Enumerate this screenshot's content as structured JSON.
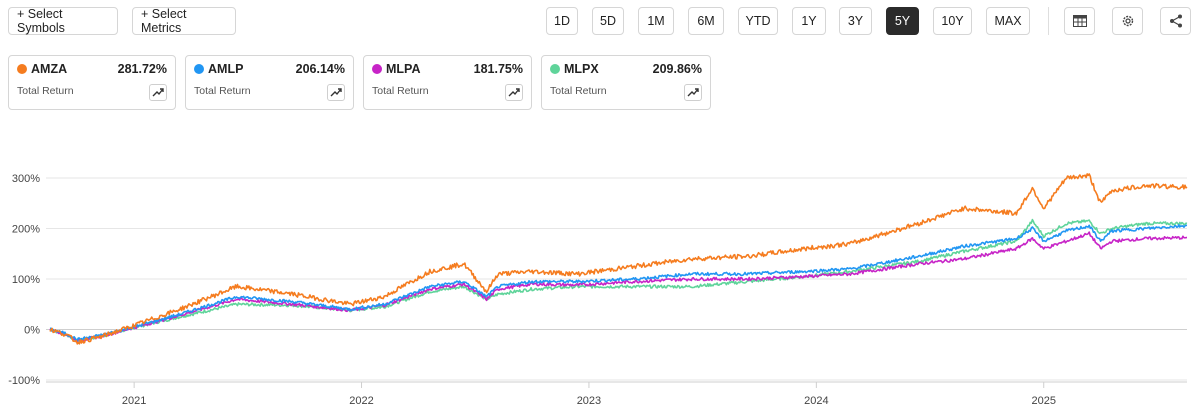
{
  "toolbar": {
    "select_symbols": "+ Select Symbols",
    "select_metrics": "+ Select Metrics",
    "ranges": [
      "1D",
      "5D",
      "1M",
      "6M",
      "YTD",
      "1Y",
      "3Y",
      "5Y",
      "10Y",
      "MAX"
    ],
    "active_range": "5Y",
    "icons": [
      "table-icon",
      "gear-icon",
      "share-icon"
    ]
  },
  "cards": [
    {
      "symbol": "AMZA",
      "value": "281.72%",
      "metric": "Total Return",
      "color": "#f57c1f"
    },
    {
      "symbol": "AMLP",
      "value": "206.14%",
      "metric": "Total Return",
      "color": "#2196f3"
    },
    {
      "symbol": "MLPA",
      "value": "181.75%",
      "metric": "Total Return",
      "color": "#c724c7"
    },
    {
      "symbol": "MLPX",
      "value": "209.86%",
      "metric": "Total Return",
      "color": "#5fd49a"
    }
  ],
  "chart_data": {
    "type": "line",
    "y_tick_labels": [
      "300%",
      "200%",
      "100%",
      "0%",
      "-100%"
    ],
    "y_ticks": [
      300,
      200,
      100,
      0,
      -100
    ],
    "ylim": [
      -110,
      330
    ],
    "x_tick_labels": [
      "2021",
      "2022",
      "2023",
      "2024",
      "2025"
    ],
    "x_ticks": [
      2021.0,
      2022.0,
      2023.0,
      2024.0,
      2025.0
    ],
    "xlim": [
      2020.63,
      2025.63
    ],
    "grid": true,
    "series": [
      {
        "name": "AMZA",
        "color": "#f57c1f",
        "x": [
          2020.63,
          2020.7,
          2020.75,
          2020.85,
          2021.0,
          2021.2,
          2021.45,
          2021.7,
          2021.95,
          2022.1,
          2022.3,
          2022.45,
          2022.55,
          2022.6,
          2022.75,
          2022.95,
          2023.2,
          2023.45,
          2023.7,
          2023.95,
          2024.15,
          2024.45,
          2024.65,
          2024.88,
          2024.95,
          2025.0,
          2025.1,
          2025.2,
          2025.25,
          2025.3,
          2025.45,
          2025.63
        ],
        "y": [
          0,
          -10,
          -25,
          -15,
          8,
          40,
          85,
          70,
          50,
          65,
          115,
          130,
          75,
          110,
          115,
          110,
          125,
          140,
          145,
          160,
          170,
          210,
          240,
          230,
          280,
          240,
          300,
          305,
          250,
          275,
          285,
          282
        ]
      },
      {
        "name": "AMLP",
        "color": "#2196f3",
        "x": [
          2020.63,
          2020.7,
          2020.75,
          2020.85,
          2021.0,
          2021.2,
          2021.45,
          2021.7,
          2021.95,
          2022.1,
          2022.3,
          2022.45,
          2022.55,
          2022.6,
          2022.75,
          2022.95,
          2023.2,
          2023.45,
          2023.7,
          2023.95,
          2024.15,
          2024.45,
          2024.65,
          2024.88,
          2024.95,
          2025.0,
          2025.1,
          2025.2,
          2025.25,
          2025.3,
          2025.45,
          2025.63
        ],
        "y": [
          0,
          -8,
          -20,
          -12,
          5,
          30,
          65,
          55,
          40,
          50,
          85,
          95,
          65,
          85,
          95,
          95,
          100,
          110,
          110,
          115,
          120,
          145,
          165,
          180,
          200,
          175,
          195,
          205,
          175,
          195,
          200,
          206
        ]
      },
      {
        "name": "MLPA",
        "color": "#c724c7",
        "x": [
          2020.63,
          2020.7,
          2020.75,
          2020.85,
          2021.0,
          2021.2,
          2021.45,
          2021.7,
          2021.95,
          2022.1,
          2022.3,
          2022.45,
          2022.55,
          2022.6,
          2022.75,
          2022.95,
          2023.2,
          2023.45,
          2023.7,
          2023.95,
          2024.15,
          2024.45,
          2024.65,
          2024.88,
          2024.95,
          2025.0,
          2025.1,
          2025.2,
          2025.25,
          2025.3,
          2025.45,
          2025.63
        ],
        "y": [
          0,
          -9,
          -22,
          -14,
          4,
          28,
          60,
          50,
          38,
          48,
          80,
          90,
          60,
          80,
          90,
          88,
          95,
          100,
          100,
          105,
          110,
          130,
          140,
          160,
          180,
          160,
          175,
          190,
          160,
          175,
          180,
          182
        ]
      },
      {
        "name": "MLPX",
        "color": "#5fd49a",
        "x": [
          2020.63,
          2020.7,
          2020.75,
          2020.85,
          2021.0,
          2021.2,
          2021.45,
          2021.7,
          2021.95,
          2022.1,
          2022.3,
          2022.45,
          2022.55,
          2022.6,
          2022.75,
          2022.95,
          2023.2,
          2023.45,
          2023.7,
          2023.95,
          2024.15,
          2024.45,
          2024.65,
          2024.88,
          2024.95,
          2025.0,
          2025.1,
          2025.2,
          2025.25,
          2025.3,
          2025.45,
          2025.63
        ],
        "y": [
          0,
          -10,
          -22,
          -14,
          4,
          25,
          50,
          48,
          38,
          45,
          75,
          85,
          60,
          70,
          80,
          85,
          85,
          85,
          95,
          105,
          115,
          135,
          155,
          175,
          215,
          185,
          210,
          215,
          190,
          200,
          210,
          210
        ]
      }
    ]
  }
}
